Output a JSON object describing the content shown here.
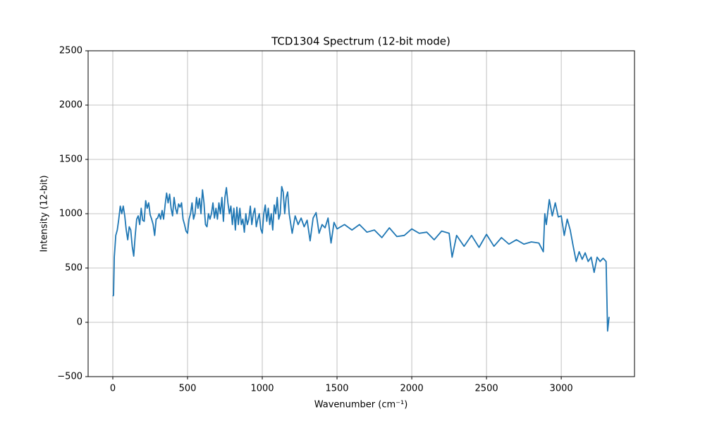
{
  "chart_data": {
    "type": "line",
    "title": "TCD1304 Spectrum (12-bit mode)",
    "xlabel": "Wavenumber (cm⁻¹)",
    "ylabel": "Intensity (12-bit)",
    "xlim": [
      -165,
      3490
    ],
    "ylim": [
      -500,
      2500
    ],
    "xticks": [
      0,
      500,
      1000,
      1500,
      2000,
      2500,
      3000
    ],
    "yticks": [
      {
        "value": -500,
        "label": "−500"
      },
      0,
      500,
      1000,
      1500,
      2000,
      2500
    ],
    "grid": true,
    "x": [
      0,
      5,
      10,
      20,
      30,
      40,
      50,
      60,
      70,
      80,
      90,
      100,
      110,
      120,
      130,
      140,
      150,
      160,
      170,
      180,
      190,
      200,
      210,
      220,
      230,
      240,
      250,
      260,
      270,
      280,
      290,
      300,
      310,
      320,
      330,
      340,
      350,
      360,
      370,
      380,
      390,
      400,
      410,
      420,
      430,
      440,
      450,
      460,
      470,
      480,
      490,
      500,
      510,
      520,
      530,
      540,
      550,
      560,
      570,
      580,
      590,
      600,
      610,
      620,
      630,
      640,
      650,
      660,
      670,
      680,
      690,
      700,
      710,
      720,
      730,
      740,
      750,
      760,
      770,
      780,
      790,
      800,
      810,
      820,
      830,
      840,
      850,
      860,
      870,
      880,
      890,
      900,
      910,
      920,
      930,
      940,
      950,
      960,
      970,
      980,
      990,
      1000,
      1010,
      1020,
      1030,
      1040,
      1050,
      1060,
      1070,
      1080,
      1090,
      1100,
      1110,
      1120,
      1130,
      1140,
      1150,
      1160,
      1170,
      1180,
      1200,
      1220,
      1240,
      1260,
      1280,
      1300,
      1320,
      1340,
      1360,
      1380,
      1400,
      1420,
      1440,
      1460,
      1480,
      1500,
      1550,
      1600,
      1650,
      1700,
      1750,
      1800,
      1850,
      1900,
      1950,
      2000,
      2050,
      2100,
      2150,
      2200,
      2250,
      2270,
      2300,
      2350,
      2400,
      2450,
      2500,
      2550,
      2600,
      2650,
      2700,
      2750,
      2800,
      2850,
      2880,
      2890,
      2900,
      2920,
      2940,
      2960,
      2980,
      3000,
      3020,
      3040,
      3060,
      3080,
      3100,
      3120,
      3140,
      3160,
      3180,
      3200,
      3220,
      3240,
      3260,
      3280,
      3300,
      3310,
      3320
    ],
    "series": [
      {
        "name": "spectrum",
        "color": "#1f77b4",
        "values": [
          240,
          250,
          600,
          800,
          850,
          950,
          1070,
          1000,
          1070,
          980,
          850,
          760,
          880,
          850,
          700,
          610,
          800,
          950,
          980,
          900,
          1050,
          940,
          930,
          1120,
          1050,
          1100,
          990,
          950,
          900,
          800,
          950,
          960,
          1000,
          950,
          1030,
          950,
          1080,
          1190,
          1100,
          1180,
          1050,
          980,
          1150,
          1050,
          1000,
          1090,
          1060,
          1100,
          950,
          900,
          840,
          820,
          950,
          1000,
          1100,
          950,
          1000,
          1150,
          1050,
          1140,
          1000,
          1220,
          1100,
          900,
          880,
          1000,
          950,
          1000,
          1100,
          960,
          1050,
          950,
          1100,
          1000,
          1150,
          930,
          1150,
          1240,
          1100,
          1000,
          1070,
          900,
          1050,
          850,
          1060,
          900,
          1050,
          900,
          950,
          830,
          1000,
          900,
          950,
          1070,
          900,
          1000,
          1050,
          880,
          950,
          1000,
          860,
          820,
          1000,
          1080,
          930,
          1050,
          900,
          1000,
          850,
          1080,
          1000,
          1150,
          950,
          1000,
          1250,
          1200,
          1000,
          1150,
          1200,
          1000,
          820,
          980,
          900,
          960,
          880,
          940,
          750,
          960,
          1010,
          820,
          900,
          870,
          960,
          730,
          920,
          860,
          900,
          850,
          900,
          830,
          850,
          780,
          870,
          790,
          800,
          860,
          820,
          830,
          760,
          840,
          820,
          600,
          800,
          700,
          800,
          690,
          810,
          700,
          780,
          720,
          760,
          720,
          740,
          730,
          650,
          1000,
          900,
          1130,
          980,
          1100,
          970,
          980,
          800,
          950,
          850,
          700,
          560,
          650,
          580,
          640,
          560,
          600,
          460,
          600,
          560,
          590,
          560,
          -80,
          50
        ]
      }
    ]
  }
}
